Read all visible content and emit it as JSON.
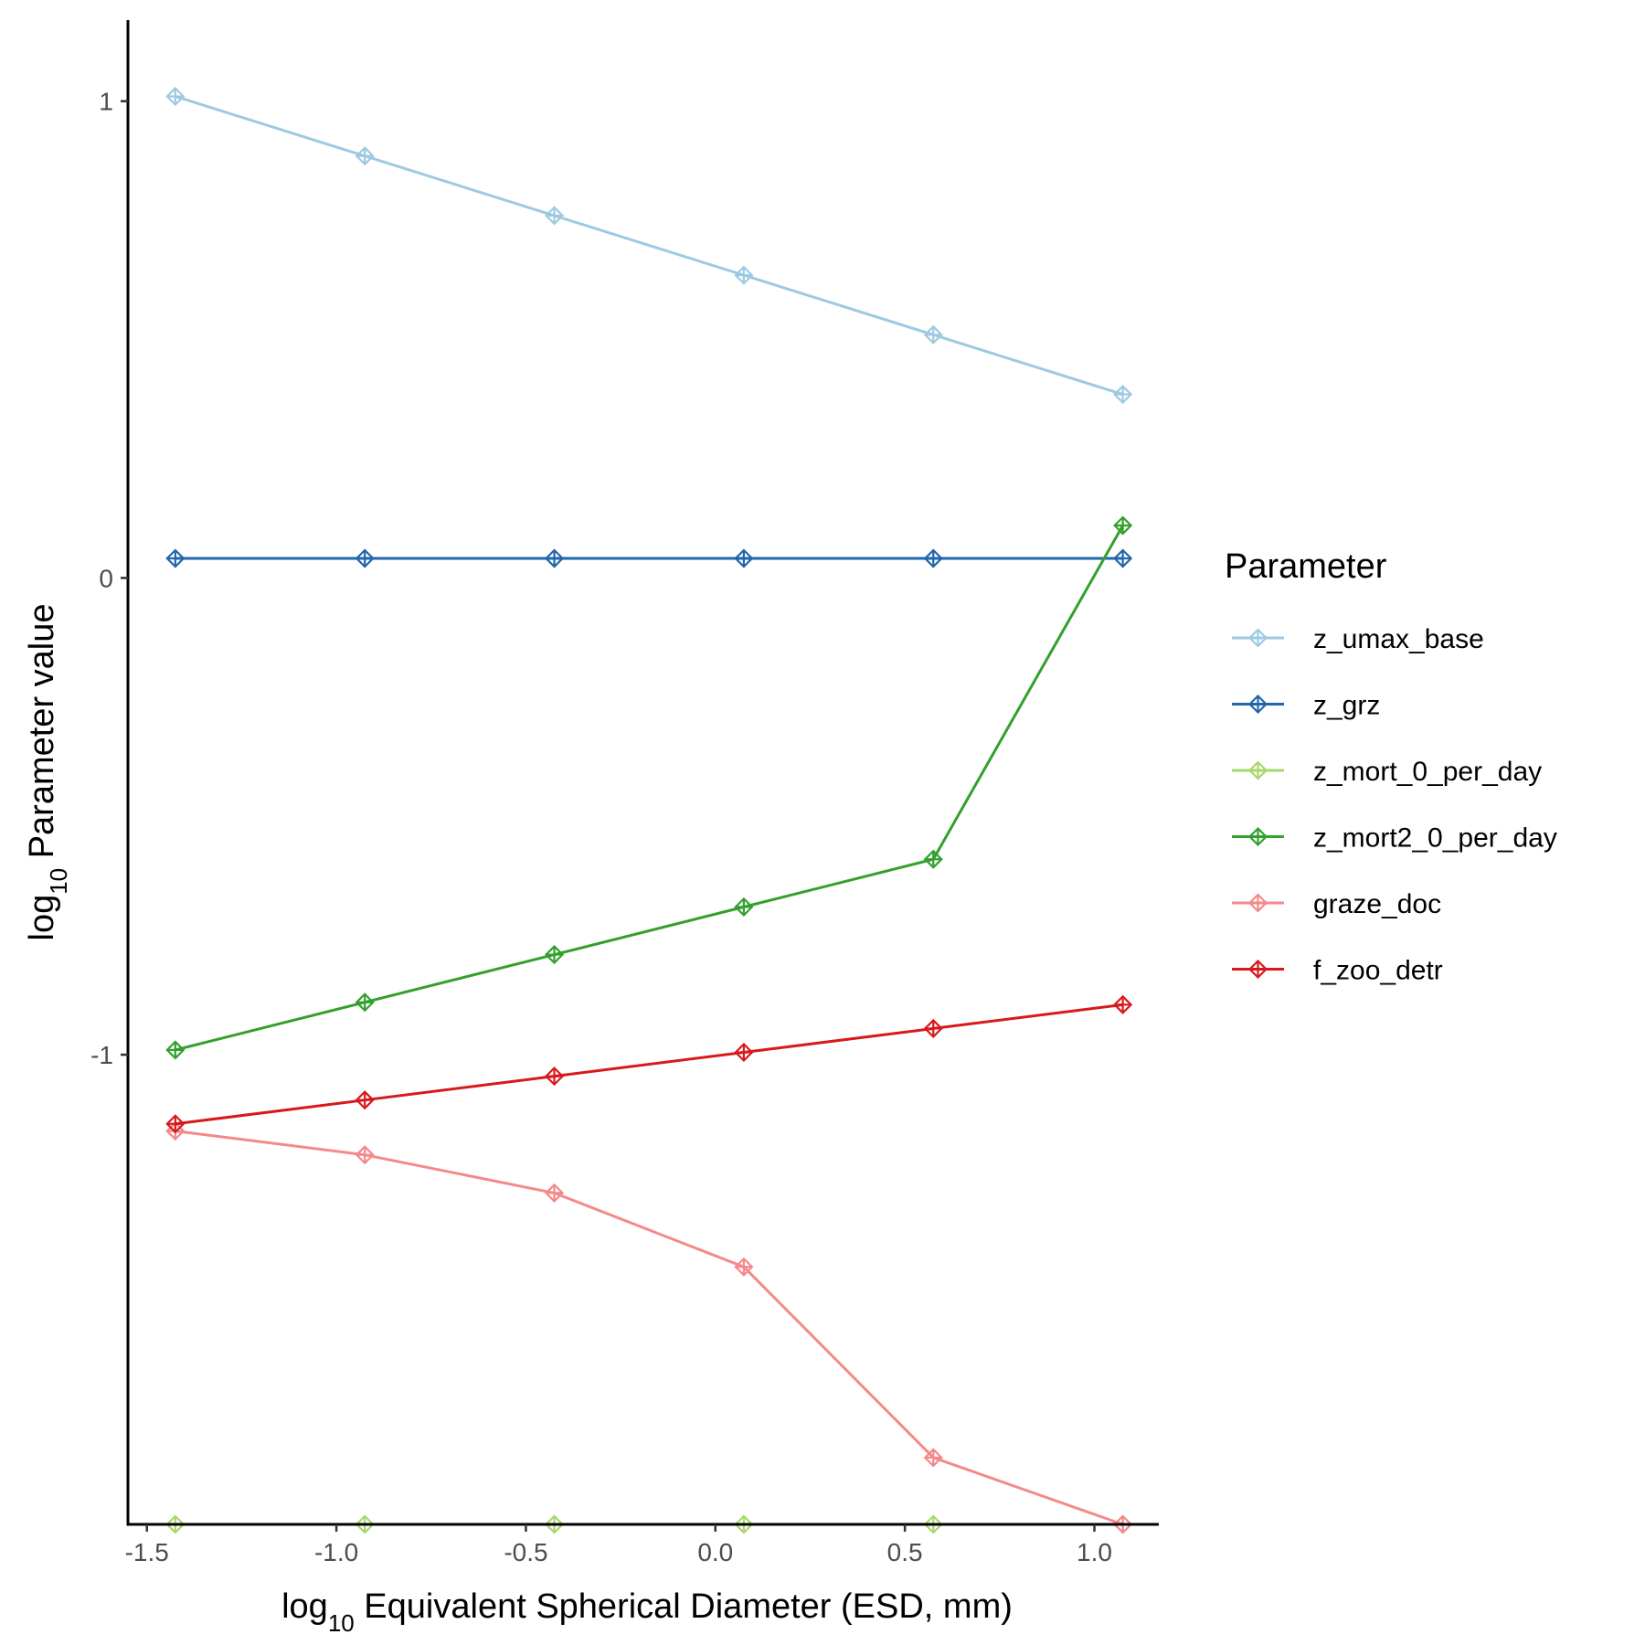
{
  "chart_data": {
    "type": "line",
    "xlabel_prefix": "log",
    "xlabel_sub": "10",
    "xlabel_rest": " Equivalent Spherical Diameter (ESD, mm)",
    "ylabel_prefix": "log",
    "ylabel_sub": "10",
    "ylabel_rest": " Parameter value",
    "xlim": [
      -1.55,
      1.17
    ],
    "ylim": [
      -1.985,
      1.17
    ],
    "x_ticks": [
      -1.5,
      -1.0,
      -0.5,
      0.0,
      0.5,
      1.0
    ],
    "x_tick_labels": [
      "-1.5",
      "-1.0",
      "-0.5",
      "0.0",
      "0.5",
      "1.0"
    ],
    "y_ticks": [
      1,
      0,
      -1
    ],
    "y_tick_labels": [
      "1",
      "0",
      "-1"
    ],
    "x": [
      -1.425,
      -0.925,
      -0.425,
      0.075,
      0.575,
      1.075
    ],
    "legend": {
      "title": "Parameter",
      "position": "right"
    },
    "grid": false,
    "series": [
      {
        "name": "z_umax_base",
        "color": "#9ecae1",
        "values": [
          1.01,
          0.885,
          0.76,
          0.635,
          0.51,
          0.385
        ]
      },
      {
        "name": "z_grz",
        "color": "#2166ac",
        "values": [
          0.041,
          0.041,
          0.041,
          0.041,
          0.041,
          0.041
        ]
      },
      {
        "name": "z_mort_0_per_day",
        "color": "#a6d96a",
        "values": [
          -1.985,
          -1.985,
          -1.985,
          -1.985,
          -1.985,
          -1.985
        ]
      },
      {
        "name": "z_mort2_0_per_day",
        "color": "#33a02c",
        "values": [
          -0.99,
          -0.89,
          -0.79,
          -0.69,
          -0.59,
          0.11
        ]
      },
      {
        "name": "graze_doc",
        "color": "#f4898b",
        "values": [
          -1.16,
          -1.21,
          -1.29,
          -1.445,
          -1.845,
          -1.985
        ]
      },
      {
        "name": "f_zoo_detr",
        "color": "#d7191c",
        "values": [
          -1.145,
          -1.095,
          -1.045,
          -0.995,
          -0.945,
          -0.895
        ]
      }
    ]
  }
}
